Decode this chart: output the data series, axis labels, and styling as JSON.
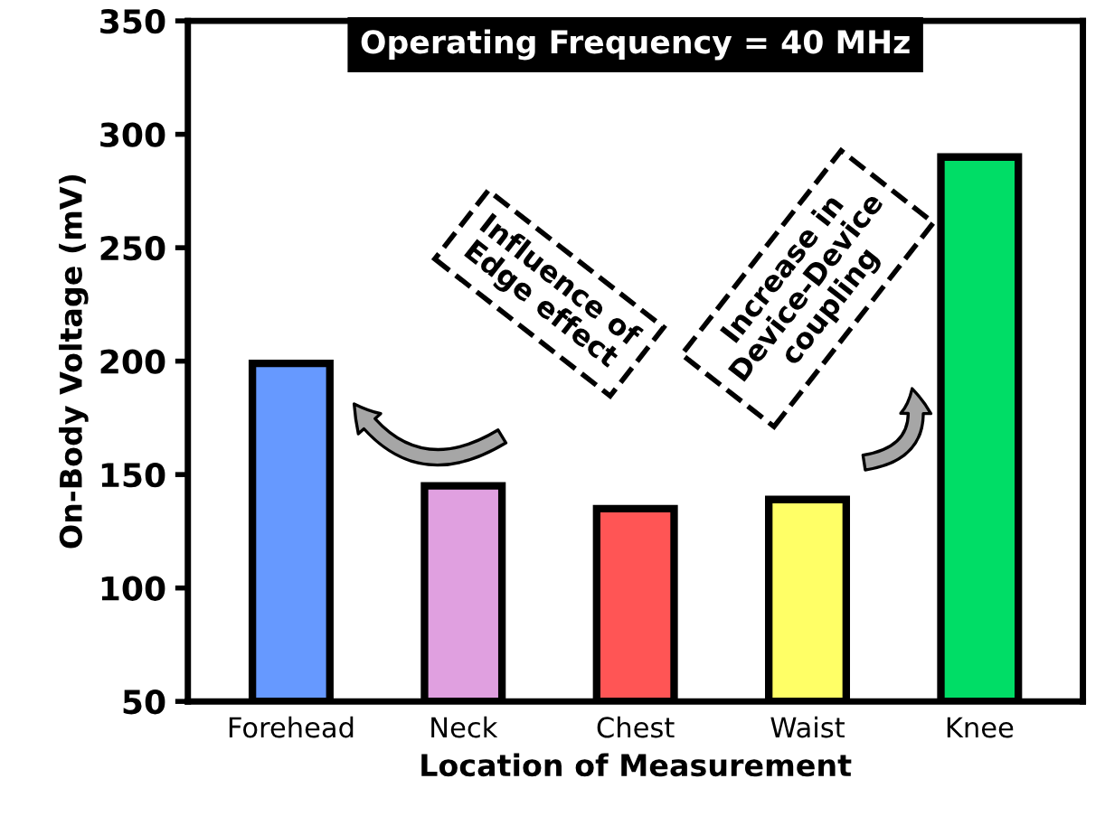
{
  "chart_data": {
    "type": "bar",
    "title": "Operating Frequency = 40 MHz",
    "xlabel": "Location of Measurement",
    "ylabel": "On-Body Voltage (mV)",
    "categories": [
      "Forehead",
      "Neck",
      "Chest",
      "Waist",
      "Knee"
    ],
    "values": [
      199,
      145,
      135,
      139,
      290
    ],
    "colors": [
      "#6699ff",
      "#e0a0e0",
      "#ff5555",
      "#ffff66",
      "#00dd66"
    ],
    "ylim": [
      50,
      350
    ],
    "yticks": [
      50,
      100,
      150,
      200,
      250,
      300,
      350
    ],
    "grid": false,
    "legend": false,
    "annotations": [
      "Influence of\nEdge effect",
      "Increase in\nDevice-Device\ncoupling"
    ]
  }
}
